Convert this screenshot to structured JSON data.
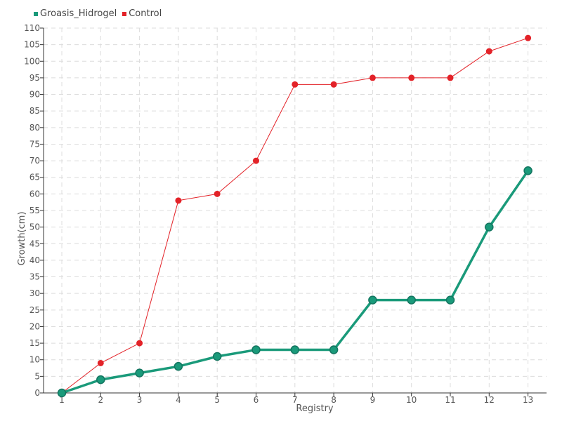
{
  "chart_data": {
    "type": "line",
    "title": "",
    "xlabel": "Registry",
    "ylabel": "Growth(cm)",
    "x": [
      "1",
      "2",
      "3",
      "4",
      "5",
      "6",
      "7",
      "8",
      "9",
      "10",
      "11",
      "12",
      "13"
    ],
    "ylim": [
      0,
      110
    ],
    "ytick_step": 5,
    "grid": true,
    "legend_position": "top-left",
    "series": [
      {
        "name": "Groasis_Hidrogel",
        "color": "#1a9a7a",
        "values": [
          0,
          4,
          6,
          8,
          11,
          13,
          13,
          13,
          28,
          28,
          28,
          50,
          67
        ]
      },
      {
        "name": "Control",
        "color": "#e32228",
        "values": [
          0,
          9,
          15,
          58,
          60,
          70,
          93,
          93,
          95,
          95,
          95,
          103,
          107
        ]
      }
    ]
  }
}
